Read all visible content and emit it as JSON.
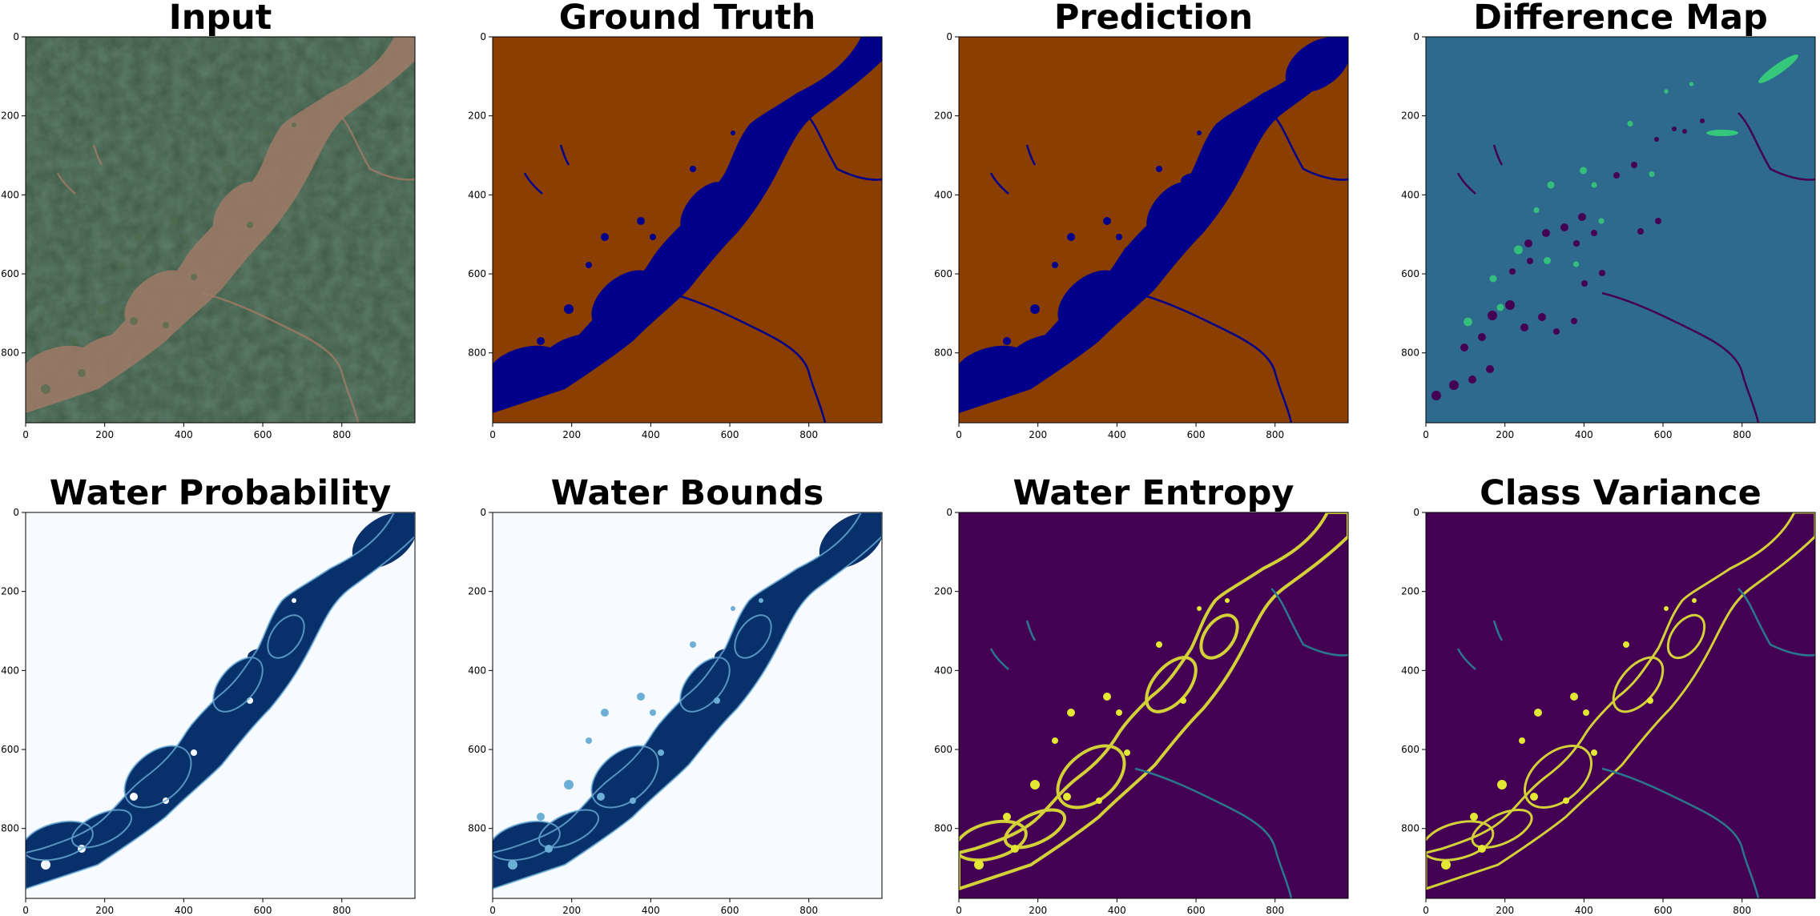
{
  "figure": {
    "panels": [
      {
        "title": "Input",
        "style": "satellite"
      },
      {
        "title": "Ground Truth",
        "style": "groundtruth"
      },
      {
        "title": "Prediction",
        "style": "prediction"
      },
      {
        "title": "Difference Map",
        "style": "difference"
      },
      {
        "title": "Water Probability",
        "style": "probability"
      },
      {
        "title": "Water Bounds",
        "style": "bounds"
      },
      {
        "title": "Water Entropy",
        "style": "entropy"
      },
      {
        "title": "Class Variance",
        "style": "variance"
      }
    ],
    "xticks": [
      "0",
      "200",
      "400",
      "600",
      "800"
    ],
    "yticks": [
      "0",
      "200",
      "400",
      "600",
      "800"
    ],
    "colors": {
      "satellite_bg": "#3d5a44",
      "river_sediment": "#a07a68",
      "land_brown": "#8b3e02",
      "water_navy": "#00008b",
      "diff_bg": "#2e6a8e",
      "diff_missed": "#440154",
      "diff_extra": "#35c87a",
      "blues_light": "#f7fbff",
      "blues_dark": "#08306b",
      "blues_mid": "#6baed6",
      "viridis_low": "#440154",
      "viridis_high": "#e3e835",
      "viridis_mid": "#2a788e"
    }
  }
}
